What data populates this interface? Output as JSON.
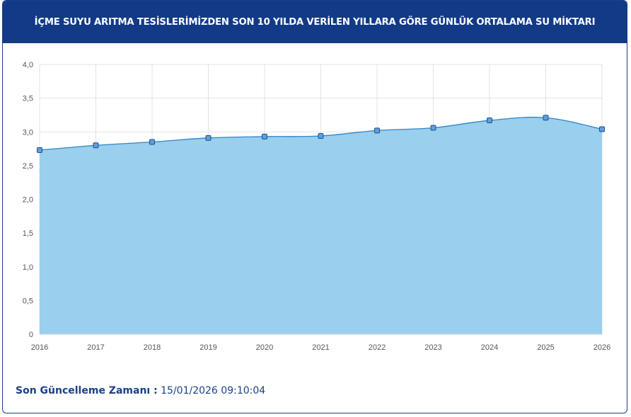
{
  "header": {
    "title": "İÇME SUYU ARITMA TESİSLERİMİZDEN SON 10 YILDA VERİLEN YILLARA GÖRE GÜNLÜK ORTALAMA SU MİKTARI"
  },
  "footer": {
    "label": "Son Güncelleme Zamanı :",
    "value": "15/01/2026 09:10:04"
  },
  "colors": {
    "header_bg": "#123a86",
    "area_fill": "#9acfed",
    "line": "#2e86c8",
    "marker_fill": "#5fa0d8",
    "marker_stroke": "#1d4d8f"
  },
  "chart_data": {
    "type": "area",
    "x": [
      "2016",
      "2017",
      "2018",
      "2019",
      "2020",
      "2021",
      "2022",
      "2023",
      "2024",
      "2025",
      "2026"
    ],
    "series": [
      {
        "values": [
          2.73,
          2.8,
          2.85,
          2.91,
          2.93,
          2.94,
          3.02,
          3.06,
          3.17,
          3.21,
          3.04
        ]
      }
    ],
    "ylim": [
      0,
      4
    ],
    "yticks": [
      0,
      0.5,
      1.0,
      1.5,
      2.0,
      2.5,
      3.0,
      3.5,
      4.0
    ],
    "ytick_labels": [
      "0",
      "0,5",
      "1,0",
      "1,5",
      "2,0",
      "2,5",
      "3,0",
      "3,5",
      "4,0"
    ],
    "grid": true,
    "smooth": true
  }
}
